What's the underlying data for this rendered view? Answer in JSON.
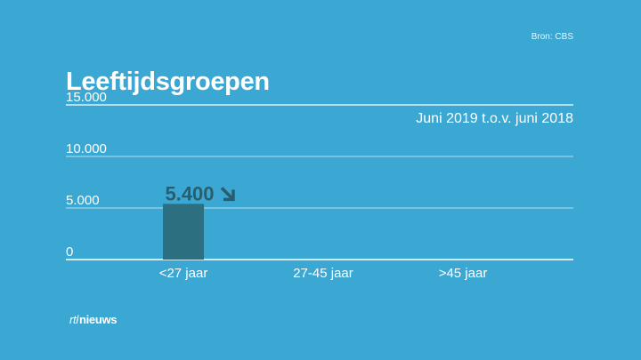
{
  "source": "Bron: CBS",
  "logo": {
    "prefix": "rtl",
    "word": "nieuws"
  },
  "colors": {
    "background": "#3ba7d3",
    "bar": "#2b6f81",
    "data_label": "#2a5e6e",
    "gridline": "#ffffff"
  },
  "chart_data": {
    "type": "bar",
    "title": "Leeftijdsgroepen",
    "subtitle": "Juni 2019 t.o.v. juni 2018",
    "categories": [
      "<27 jaar",
      "27-45 jaar",
      ">45 jaar"
    ],
    "values": [
      5400,
      null,
      null
    ],
    "data_labels": [
      "5.400",
      null,
      null
    ],
    "trend_icons": [
      "arrow-down-right-icon",
      null,
      null
    ],
    "ylim": [
      0,
      15000
    ],
    "yticks": [
      0,
      5000,
      10000,
      15000
    ],
    "ytick_labels": [
      "0",
      "5.000",
      "10.000",
      "15.000"
    ],
    "grid": true,
    "xlabel": "",
    "ylabel": ""
  }
}
